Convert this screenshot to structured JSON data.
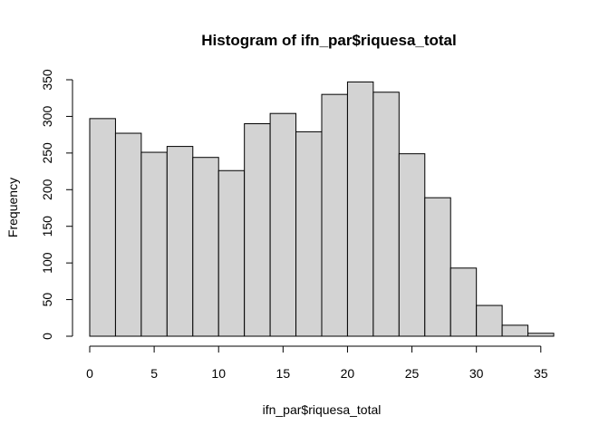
{
  "chart_data": {
    "type": "bar",
    "title": "Histogram of ifn_par$riquesa_total",
    "xlabel": "ifn_par$riquesa_total",
    "ylabel": "Frequency",
    "bin_edges": [
      0,
      2,
      4,
      6,
      8,
      10,
      12,
      14,
      16,
      18,
      20,
      22,
      24,
      26,
      28,
      30,
      32,
      34,
      36
    ],
    "values": [
      297,
      277,
      251,
      259,
      244,
      226,
      290,
      304,
      279,
      330,
      347,
      333,
      249,
      189,
      93,
      42,
      15,
      4
    ],
    "xlim": [
      0,
      36
    ],
    "ylim": [
      0,
      350
    ],
    "x_ticks": [
      "0",
      "5",
      "10",
      "15",
      "20",
      "25",
      "30",
      "35"
    ],
    "y_ticks": [
      "0",
      "50",
      "100",
      "150",
      "200",
      "250",
      "300",
      "350"
    ],
    "grid": false,
    "bar_color": "#d3d3d3",
    "border_color": "#000000"
  }
}
